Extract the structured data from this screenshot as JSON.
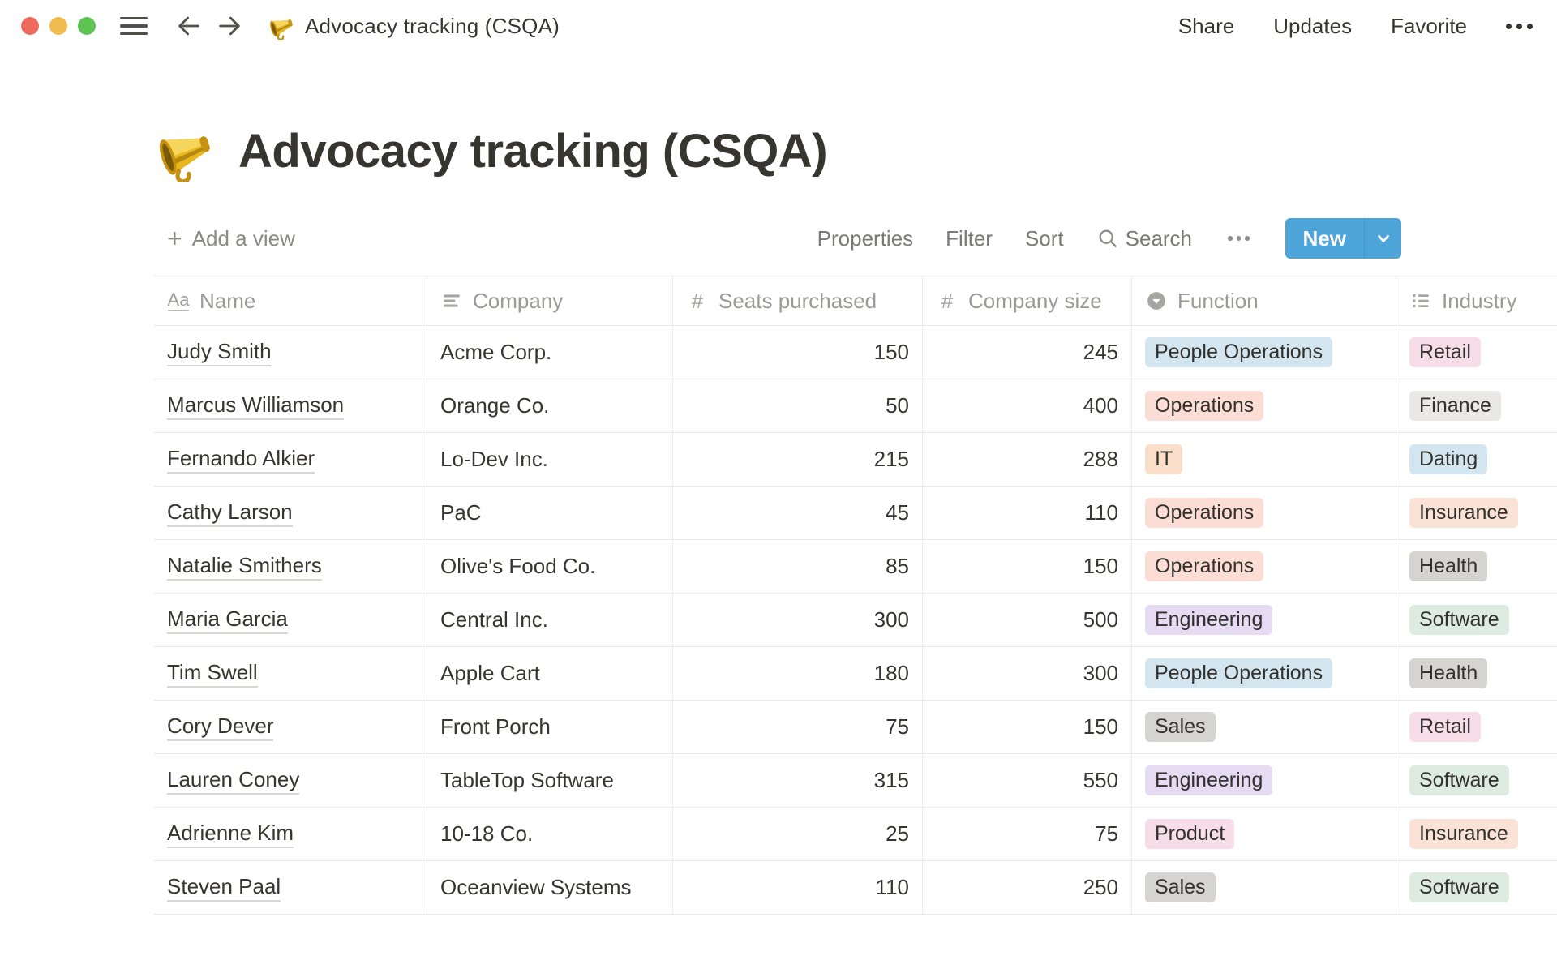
{
  "titlebar": {
    "title": "Advocacy tracking (CSQA)",
    "share": "Share",
    "updates": "Updates",
    "favorite": "Favorite"
  },
  "page": {
    "icon": "megaphone-icon",
    "title": "Advocacy tracking (CSQA)"
  },
  "toolbar": {
    "add_view": "Add a view",
    "properties": "Properties",
    "filter": "Filter",
    "sort": "Sort",
    "search": "Search",
    "new": "New"
  },
  "table": {
    "columns": [
      {
        "label": "Name",
        "icon": "title-icon"
      },
      {
        "label": "Company",
        "icon": "text-icon"
      },
      {
        "label": "Seats purchased",
        "icon": "number-icon"
      },
      {
        "label": "Company size",
        "icon": "number-icon"
      },
      {
        "label": "Function",
        "icon": "select-icon"
      },
      {
        "label": "Industry",
        "icon": "multiselect-icon"
      }
    ],
    "rows": [
      {
        "name": "Judy Smith",
        "company": "Acme Corp.",
        "seats": "150",
        "size": "245",
        "function": {
          "label": "People Operations",
          "color": "blue"
        },
        "industry": {
          "label": "Retail",
          "color": "pink"
        }
      },
      {
        "name": "Marcus Williamson",
        "company": "Orange Co.",
        "seats": "50",
        "size": "400",
        "function": {
          "label": "Operations",
          "color": "red"
        },
        "industry": {
          "label": "Finance",
          "color": "lightgray"
        }
      },
      {
        "name": "Fernando Alkier",
        "company": "Lo-Dev Inc.",
        "seats": "215",
        "size": "288",
        "function": {
          "label": "IT",
          "color": "orange"
        },
        "industry": {
          "label": "Dating",
          "color": "blue"
        }
      },
      {
        "name": "Cathy Larson",
        "company": "PaC",
        "seats": "45",
        "size": "110",
        "function": {
          "label": "Operations",
          "color": "red"
        },
        "industry": {
          "label": "Insurance",
          "color": "peach"
        }
      },
      {
        "name": "Natalie Smithers",
        "company": "Olive's Food Co.",
        "seats": "85",
        "size": "150",
        "function": {
          "label": "Operations",
          "color": "red"
        },
        "industry": {
          "label": "Health",
          "color": "gray"
        }
      },
      {
        "name": "Maria Garcia",
        "company": "Central Inc.",
        "seats": "300",
        "size": "500",
        "function": {
          "label": "Engineering",
          "color": "purple"
        },
        "industry": {
          "label": "Software",
          "color": "green"
        }
      },
      {
        "name": "Tim Swell",
        "company": "Apple Cart",
        "seats": "180",
        "size": "300",
        "function": {
          "label": "People Operations",
          "color": "blue"
        },
        "industry": {
          "label": "Health",
          "color": "gray"
        }
      },
      {
        "name": "Cory Dever",
        "company": "Front Porch",
        "seats": "75",
        "size": "150",
        "function": {
          "label": "Sales",
          "color": "gray"
        },
        "industry": {
          "label": "Retail",
          "color": "pink"
        }
      },
      {
        "name": "Lauren Coney",
        "company": "TableTop Software",
        "seats": "315",
        "size": "550",
        "function": {
          "label": "Engineering",
          "color": "purple"
        },
        "industry": {
          "label": "Software",
          "color": "green"
        }
      },
      {
        "name": "Adrienne Kim",
        "company": "10-18 Co.",
        "seats": "25",
        "size": "75",
        "function": {
          "label": "Product",
          "color": "pink"
        },
        "industry": {
          "label": "Insurance",
          "color": "peach"
        }
      },
      {
        "name": "Steven Paal",
        "company": "Oceanview Systems",
        "seats": "110",
        "size": "250",
        "function": {
          "label": "Sales",
          "color": "gray"
        },
        "industry": {
          "label": "Software",
          "color": "green"
        }
      }
    ],
    "tag_colors": {
      "blue": "#D3E5EF",
      "red": "#FBDDD6",
      "orange": "#FADEC9",
      "peach": "#FAE3D6",
      "gray": "#D5D4D1",
      "lightgray": "#E9E8E5",
      "purple": "#E5DBF3",
      "pink": "#F6DDE8",
      "green": "#DDEBE1"
    }
  },
  "colors": {
    "accent_blue": "#4EA5DA",
    "traffic_red": "#EE6A5F",
    "traffic_yellow": "#F1BD4E",
    "traffic_green": "#5FC454"
  }
}
